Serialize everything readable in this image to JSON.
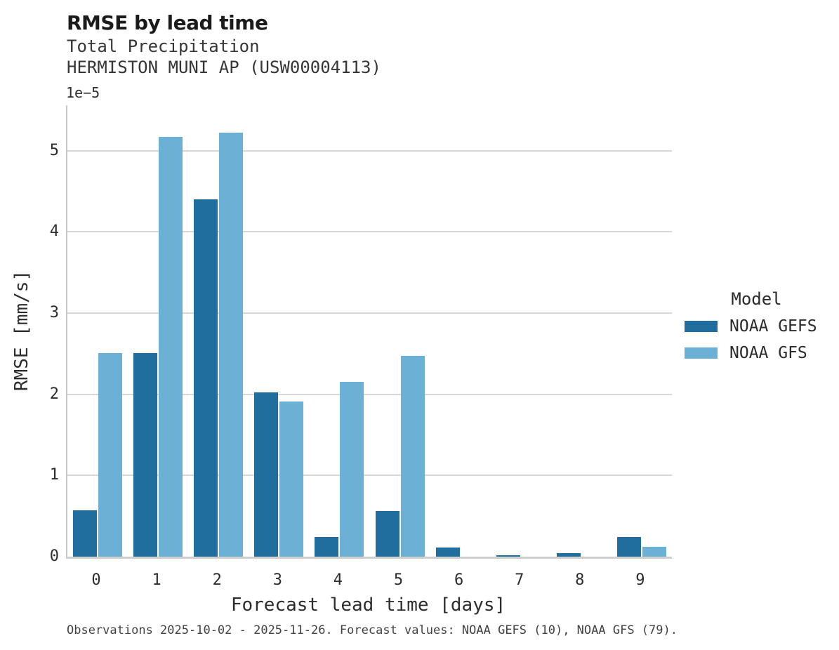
{
  "chart_data": {
    "type": "bar",
    "title": "RMSE by lead time",
    "subtitle_lines": [
      "Total Precipitation",
      "HERMISTON MUNI AP (USW00004113)"
    ],
    "scale_note": "1e−5",
    "categories": [
      "0",
      "1",
      "2",
      "3",
      "4",
      "5",
      "6",
      "7",
      "8",
      "9"
    ],
    "series": [
      {
        "name": "NOAA GEFS",
        "color": "#1f6e9e",
        "values": [
          0.57,
          2.51,
          4.4,
          2.02,
          0.24,
          0.56,
          0.11,
          0.02,
          0.04,
          0.24
        ]
      },
      {
        "name": "NOAA GFS",
        "color": "#6cb0d5",
        "values": [
          2.51,
          5.17,
          5.22,
          1.91,
          2.15,
          2.47,
          0,
          0,
          0,
          0.12
        ]
      }
    ],
    "xlabel": "Forecast lead time [days]",
    "ylabel": "RMSE [mm/s]",
    "yticks": [
      0,
      1,
      2,
      3,
      4,
      5
    ],
    "ylim": [
      0,
      5.56
    ],
    "grid": true,
    "legend": {
      "title": "Model",
      "position": "right"
    },
    "colors": {
      "grid": "#d6d6d6",
      "spine": "#c9c9c9"
    }
  },
  "caption": "Observations 2025-10-02 - 2025-11-26. Forecast values: NOAA GEFS (10), NOAA GFS (79)."
}
